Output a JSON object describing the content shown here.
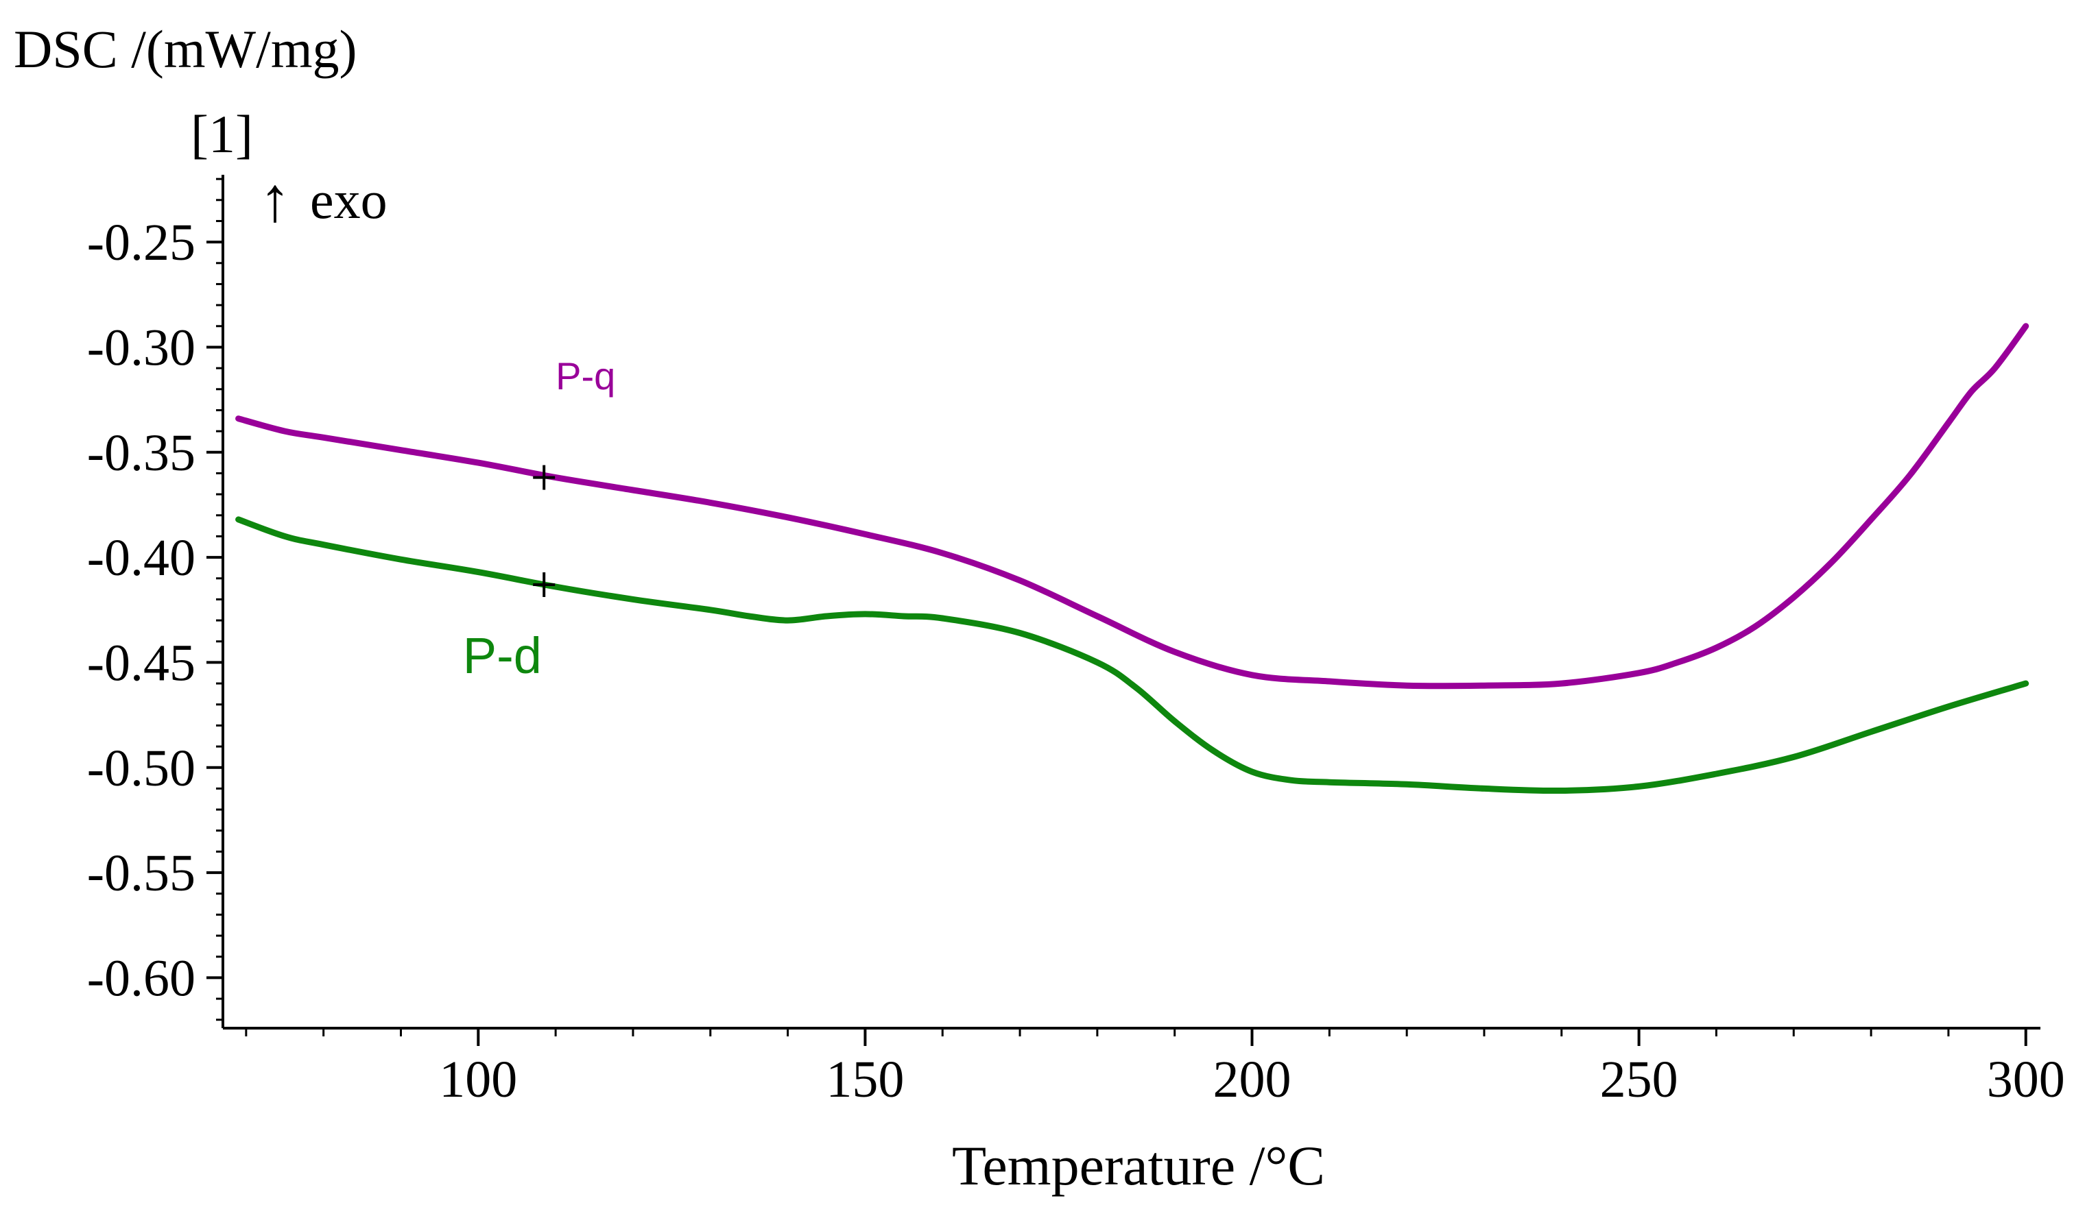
{
  "chart_data": {
    "type": "line",
    "ylabel": "DSC /(mW/mg)",
    "ylabel_unit": "[1]",
    "exo_marker": "exo",
    "exo_arrow": "↑",
    "xlabel": "Temperature /°C",
    "xlim": [
      67,
      301
    ],
    "ylim": [
      -0.624,
      -0.218
    ],
    "x_ticks": [
      {
        "value": 100,
        "label": "100"
      },
      {
        "value": 150,
        "label": "150"
      },
      {
        "value": 200,
        "label": "200"
      },
      {
        "value": 250,
        "label": "250"
      },
      {
        "value": 300,
        "label": "300"
      }
    ],
    "y_ticks": [
      {
        "value": -0.25,
        "label": "-0.25"
      },
      {
        "value": -0.3,
        "label": "-0.30"
      },
      {
        "value": -0.35,
        "label": "-0.35"
      },
      {
        "value": -0.4,
        "label": "-0.40"
      },
      {
        "value": -0.45,
        "label": "-0.45"
      },
      {
        "value": -0.5,
        "label": "-0.50"
      },
      {
        "value": -0.55,
        "label": "-0.55"
      },
      {
        "value": -0.6,
        "label": "-0.60"
      }
    ],
    "series": [
      {
        "name": "P-q",
        "color": "#990099",
        "label_at": [
          110,
          -0.32
        ],
        "label_size": "small",
        "cross_marker": [
          108.5,
          -0.362
        ],
        "x": [
          69,
          75,
          80,
          90,
          100,
          110,
          120,
          130,
          140,
          150,
          160,
          170,
          180,
          190,
          200,
          210,
          220,
          230,
          240,
          250,
          255,
          260,
          265,
          270,
          275,
          280,
          285,
          290,
          293,
          296,
          300
        ],
        "y": [
          -0.334,
          -0.34,
          -0.343,
          -0.349,
          -0.355,
          -0.362,
          -0.368,
          -0.374,
          -0.381,
          -0.389,
          -0.398,
          -0.411,
          -0.428,
          -0.445,
          -0.456,
          -0.459,
          -0.461,
          -0.461,
          -0.46,
          -0.455,
          -0.45,
          -0.443,
          -0.433,
          -0.419,
          -0.402,
          -0.382,
          -0.361,
          -0.336,
          -0.321,
          -0.31,
          -0.29
        ]
      },
      {
        "name": "P-d",
        "color": "#0e870e",
        "label_at": [
          98,
          -0.455
        ],
        "label_size": "large",
        "cross_marker": [
          108.5,
          -0.413
        ],
        "x": [
          69,
          75,
          80,
          90,
          100,
          110,
          120,
          130,
          135,
          140,
          145,
          150,
          155,
          160,
          170,
          180,
          185,
          190,
          195,
          200,
          205,
          210,
          220,
          230,
          240,
          250,
          260,
          270,
          280,
          290,
          300
        ],
        "y": [
          -0.382,
          -0.39,
          -0.394,
          -0.401,
          -0.407,
          -0.414,
          -0.42,
          -0.425,
          -0.428,
          -0.43,
          -0.428,
          -0.427,
          -0.428,
          -0.429,
          -0.436,
          -0.45,
          -0.462,
          -0.478,
          -0.492,
          -0.502,
          -0.506,
          -0.507,
          -0.508,
          -0.51,
          -0.511,
          -0.509,
          -0.503,
          -0.495,
          -0.483,
          -0.471,
          -0.46
        ]
      }
    ]
  }
}
